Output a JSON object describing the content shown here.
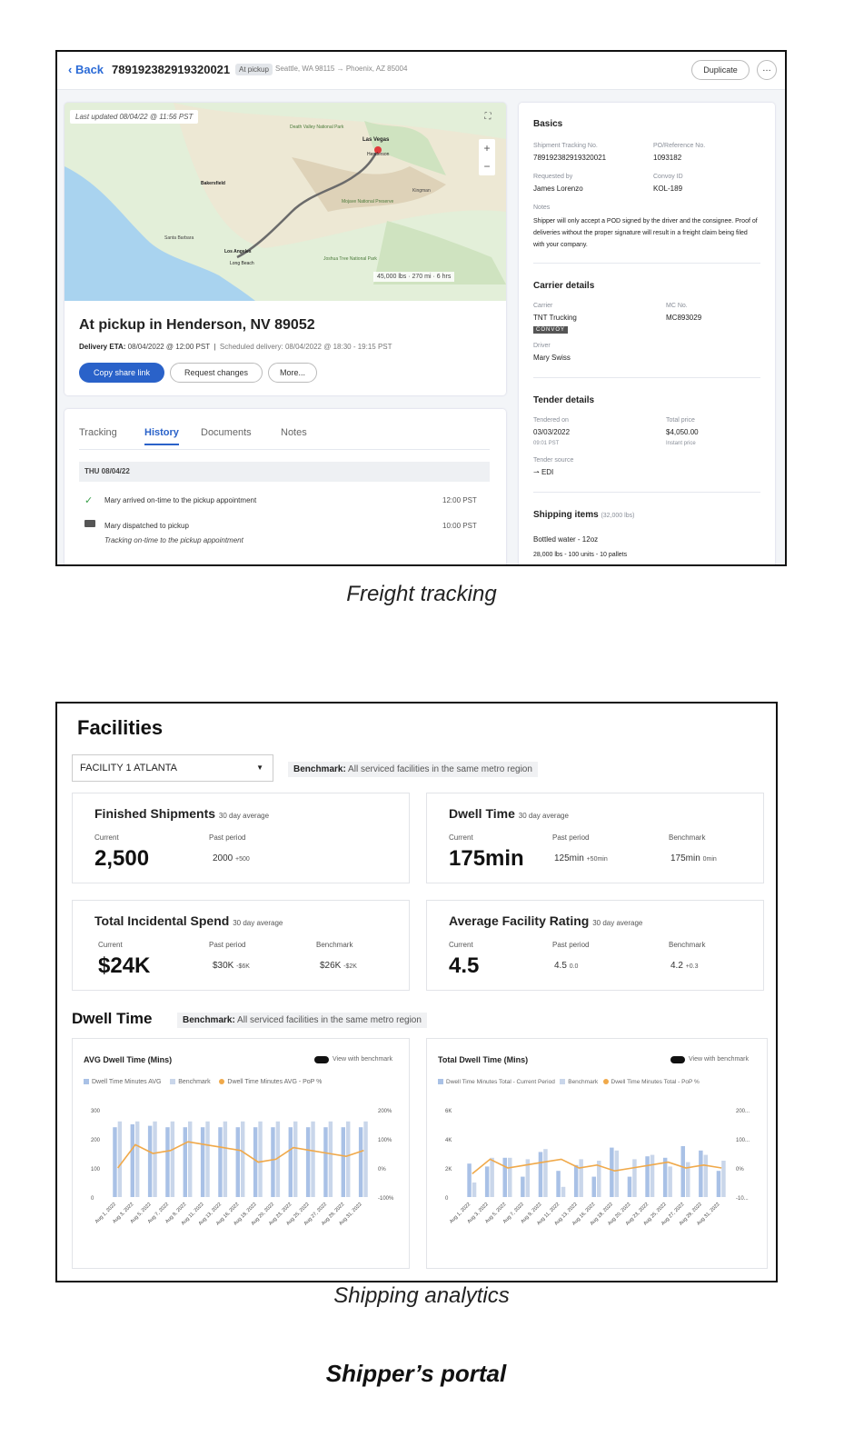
{
  "tracking": {
    "back_label": "Back",
    "tracking_no": "7891923829193200​21",
    "status_pill": "At pickup",
    "route": "Seattle, WA 98115 → Phoenix, AZ 85004",
    "duplicate_label": "Duplicate",
    "more_icon": "…",
    "map": {
      "last_updated": "Last updated 08/04/22 @ 11:56 PST",
      "stats": "45,000 lbs · 270 mi · 6 hrs",
      "place_labels": [
        "Las Vegas",
        "Henderson",
        "Bakersfield",
        "Los Angeles",
        "Long Beach",
        "Santa Barbara",
        "Kingman",
        "Death Valley National Park",
        "Mojave National Preserve",
        "Joshua Tree National Park"
      ]
    },
    "status_title": "At pickup in Henderson, NV 89052",
    "delivery_eta_label": "Delivery ETA:",
    "delivery_eta": "08/04/2022 @ 12:00 PST",
    "scheduled_label": "Scheduled delivery:",
    "scheduled": "08/04/2022 @ 18:30 - 19:15 PST",
    "copy_share_label": "Copy share link",
    "request_changes_label": "Request changes",
    "more_label": "More...",
    "tabs": [
      "Tracking",
      "History",
      "Documents",
      "Notes"
    ],
    "active_tab": "History",
    "day_header": "THU 08/04/22",
    "events": [
      {
        "text": "Mary arrived on-time to the pickup appointment",
        "time": "12:00 PST",
        "sub": ""
      },
      {
        "text": "Mary dispatched to pickup",
        "time": "10:00 PST",
        "sub": "Tracking on-time to the pickup appointment"
      }
    ],
    "basics": {
      "heading": "Basics",
      "tracking_label": "Shipment Tracking No.",
      "tracking_value": "789192382919320021",
      "po_label": "PO/Reference No.",
      "po_value": "1093182",
      "requested_label": "Requested by",
      "requested_value": "James Lorenzo",
      "convoy_id_label": "Convoy ID",
      "convoy_id_value": "KOL-189",
      "notes_label": "Notes",
      "notes_value": "Shipper will only accept a POD signed by the driver and the consignee. Proof of deliveries without the proper signature will result in a freight claim being filed with your company."
    },
    "carrier": {
      "heading": "Carrier details",
      "carrier_label": "Carrier",
      "carrier_value": "TNT Trucking",
      "badge": "CONVOY",
      "mc_label": "MC No.",
      "mc_value": "MC893029",
      "driver_label": "Driver",
      "driver_value": "Mary Swiss"
    },
    "tender": {
      "heading": "Tender details",
      "tendered_label": "Tendered on",
      "tendered_value": "03/03/2022",
      "tendered_time": "09:01 PST",
      "price_label": "Total price",
      "price_value": "$4,050.00",
      "price_note": "Instant price",
      "source_label": "Tender source",
      "source_value": "EDI"
    },
    "shipping_items": {
      "heading": "Shipping items",
      "weight": "(32,000 lbs)",
      "item_name": "Bottled water - 12oz",
      "item_detail": "28,000 lbs - 100 units - 10 pallets"
    }
  },
  "caption1": "Freight tracking",
  "analytics": {
    "title": "Facilities",
    "facility_select": "FACILITY 1 ATLANTA",
    "benchmark_label": "Benchmark:",
    "benchmark_text": "All serviced facilities in the same metro region",
    "metrics": [
      {
        "title": "Finished Shipments",
        "avg": "30 day average",
        "current_label": "Current",
        "current": "2,500",
        "past_label": "Past period",
        "past": "2000",
        "past_delta": "+500",
        "bench_label": "",
        "bench": "",
        "bench_delta": ""
      },
      {
        "title": "Dwell Time",
        "avg": "30 day average",
        "current_label": "Current",
        "current": "175min",
        "past_label": "Past period",
        "past": "125min",
        "past_delta": "+50min",
        "bench_label": "Benchmark",
        "bench": "175min",
        "bench_delta": "0min"
      },
      {
        "title": "Total Incidental Spend",
        "avg": "30 day average",
        "current_label": "Current",
        "current": "$24K",
        "past_label": "Past period",
        "past": "$30K",
        "past_delta": "-$6K",
        "bench_label": "Benchmark",
        "bench": "$26K",
        "bench_delta": "-$2K"
      },
      {
        "title": "Average Facility Rating",
        "avg": "30 day average",
        "current_label": "Current",
        "current": "4.5",
        "past_label": "Past period",
        "past": "4.5",
        "past_delta": "0.0",
        "bench_label": "Benchmark",
        "bench": "4.2",
        "bench_delta": "+0.3"
      }
    ],
    "dwell_title": "Dwell Time",
    "charts": [
      {
        "title": "AVG Dwell Time (Mins)",
        "toggle_label": "View with benchmark",
        "legend": [
          "Dwell Time Minutes AVG",
          "Benchmark",
          "Dwell Time Minutes AVG - PoP %"
        ]
      },
      {
        "title": "Total Dwell Time (Mins)",
        "toggle_label": "View with benchmark",
        "legend": [
          "Dwell Time Minutes Total - Current Period",
          "Benchmark",
          "Dwell Time Minutes Total - PoP %"
        ]
      }
    ]
  },
  "chart_data": [
    {
      "type": "bar",
      "title": "AVG Dwell Time (Mins)",
      "categories": [
        "Aug 1, 2022",
        "Aug 3, 2022",
        "Aug 5, 2022",
        "Aug 7, 2022",
        "Aug 9, 2022",
        "Aug 11, 2022",
        "Aug 13, 2022",
        "Aug 16, 2022",
        "Aug 18, 2022",
        "Aug 20, 2022",
        "Aug 23, 2022",
        "Aug 25, 2022",
        "Aug 27, 2022",
        "Aug 29, 2022",
        "Aug 31, 2022"
      ],
      "yticks_left": [
        "300",
        "200",
        "100",
        "0"
      ],
      "yticks_right": [
        "200%",
        "100%",
        "0%",
        "-100%"
      ],
      "ylim": [
        0,
        300
      ],
      "y2lim": [
        -100,
        200
      ],
      "series": [
        {
          "name": "Dwell Time Minutes AVG",
          "type": "bar",
          "color": "#a9c1e6",
          "values": [
            240,
            250,
            245,
            240,
            240,
            240,
            240,
            240,
            240,
            240,
            240,
            240,
            240,
            240,
            240
          ]
        },
        {
          "name": "Benchmark",
          "type": "bar",
          "color": "#c9d6ea",
          "values": [
            260,
            260,
            260,
            260,
            260,
            260,
            260,
            260,
            260,
            260,
            260,
            260,
            260,
            260,
            260
          ]
        },
        {
          "name": "Dwell Time Minutes AVG - PoP %",
          "type": "line",
          "color": "#f0a94a",
          "values": [
            0,
            80,
            50,
            60,
            90,
            80,
            70,
            60,
            20,
            30,
            70,
            60,
            50,
            40,
            60
          ]
        }
      ]
    },
    {
      "type": "bar",
      "title": "Total Dwell Time (Mins)",
      "categories": [
        "Aug 1, 2022",
        "Aug 3, 2022",
        "Aug 5, 2022",
        "Aug 7, 2022",
        "Aug 9, 2022",
        "Aug 11, 2022",
        "Aug 13, 2022",
        "Aug 16, 2022",
        "Aug 18, 2022",
        "Aug 20, 2022",
        "Aug 23, 2022",
        "Aug 25, 2022",
        "Aug 27, 2022",
        "Aug 29, 2022",
        "Aug 31, 2022"
      ],
      "yticks_left": [
        "6K",
        "4K",
        "2K",
        "0"
      ],
      "yticks_right": [
        "200...",
        "100...",
        "0%",
        "-10..."
      ],
      "ylim": [
        0,
        6000
      ],
      "y2lim": [
        -100,
        200
      ],
      "series": [
        {
          "name": "Dwell Time Minutes Total - Current Period",
          "type": "bar",
          "color": "#a9c1e6",
          "values": [
            2300,
            2100,
            2700,
            1400,
            3100,
            1800,
            2200,
            1400,
            3400,
            1400,
            2800,
            2700,
            3500,
            3200,
            1800
          ]
        },
        {
          "name": "Benchmark",
          "type": "bar",
          "color": "#c9d6ea",
          "values": [
            1000,
            2700,
            2700,
            2600,
            3300,
            700,
            2600,
            2500,
            3200,
            2600,
            2900,
            2100,
            2400,
            2900,
            2500
          ]
        },
        {
          "name": "Dwell Time Minutes Total - PoP %",
          "type": "line",
          "color": "#f0a94a",
          "values": [
            -20,
            30,
            0,
            10,
            20,
            30,
            0,
            10,
            -10,
            0,
            10,
            20,
            0,
            10,
            0
          ]
        }
      ]
    }
  ],
  "caption2": "Shipping analytics",
  "page_title": "Shipper’s portal",
  "colors": {
    "accent": "#2a62c9",
    "bar": "#a9c1e6",
    "line": "#f0a94a"
  }
}
